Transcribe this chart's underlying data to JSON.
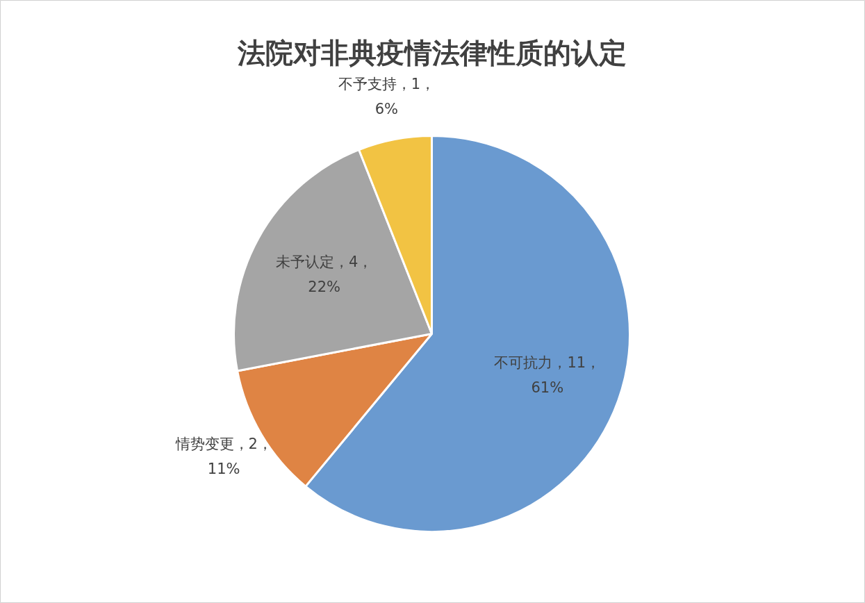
{
  "chart_data": {
    "type": "pie",
    "title": "法院对非典疫情法律性质的认定",
    "categories": [
      "不可抗力",
      "情势变更",
      "未予认定",
      "不予支持"
    ],
    "values": [
      61,
      11,
      22,
      6
    ],
    "colors": [
      "#6a9ad0",
      "#df8444",
      "#a5a5a5",
      "#f2c343"
    ],
    "value_labels": [
      "11，61%",
      "2，11%",
      "4，22%",
      "1，6%"
    ]
  }
}
